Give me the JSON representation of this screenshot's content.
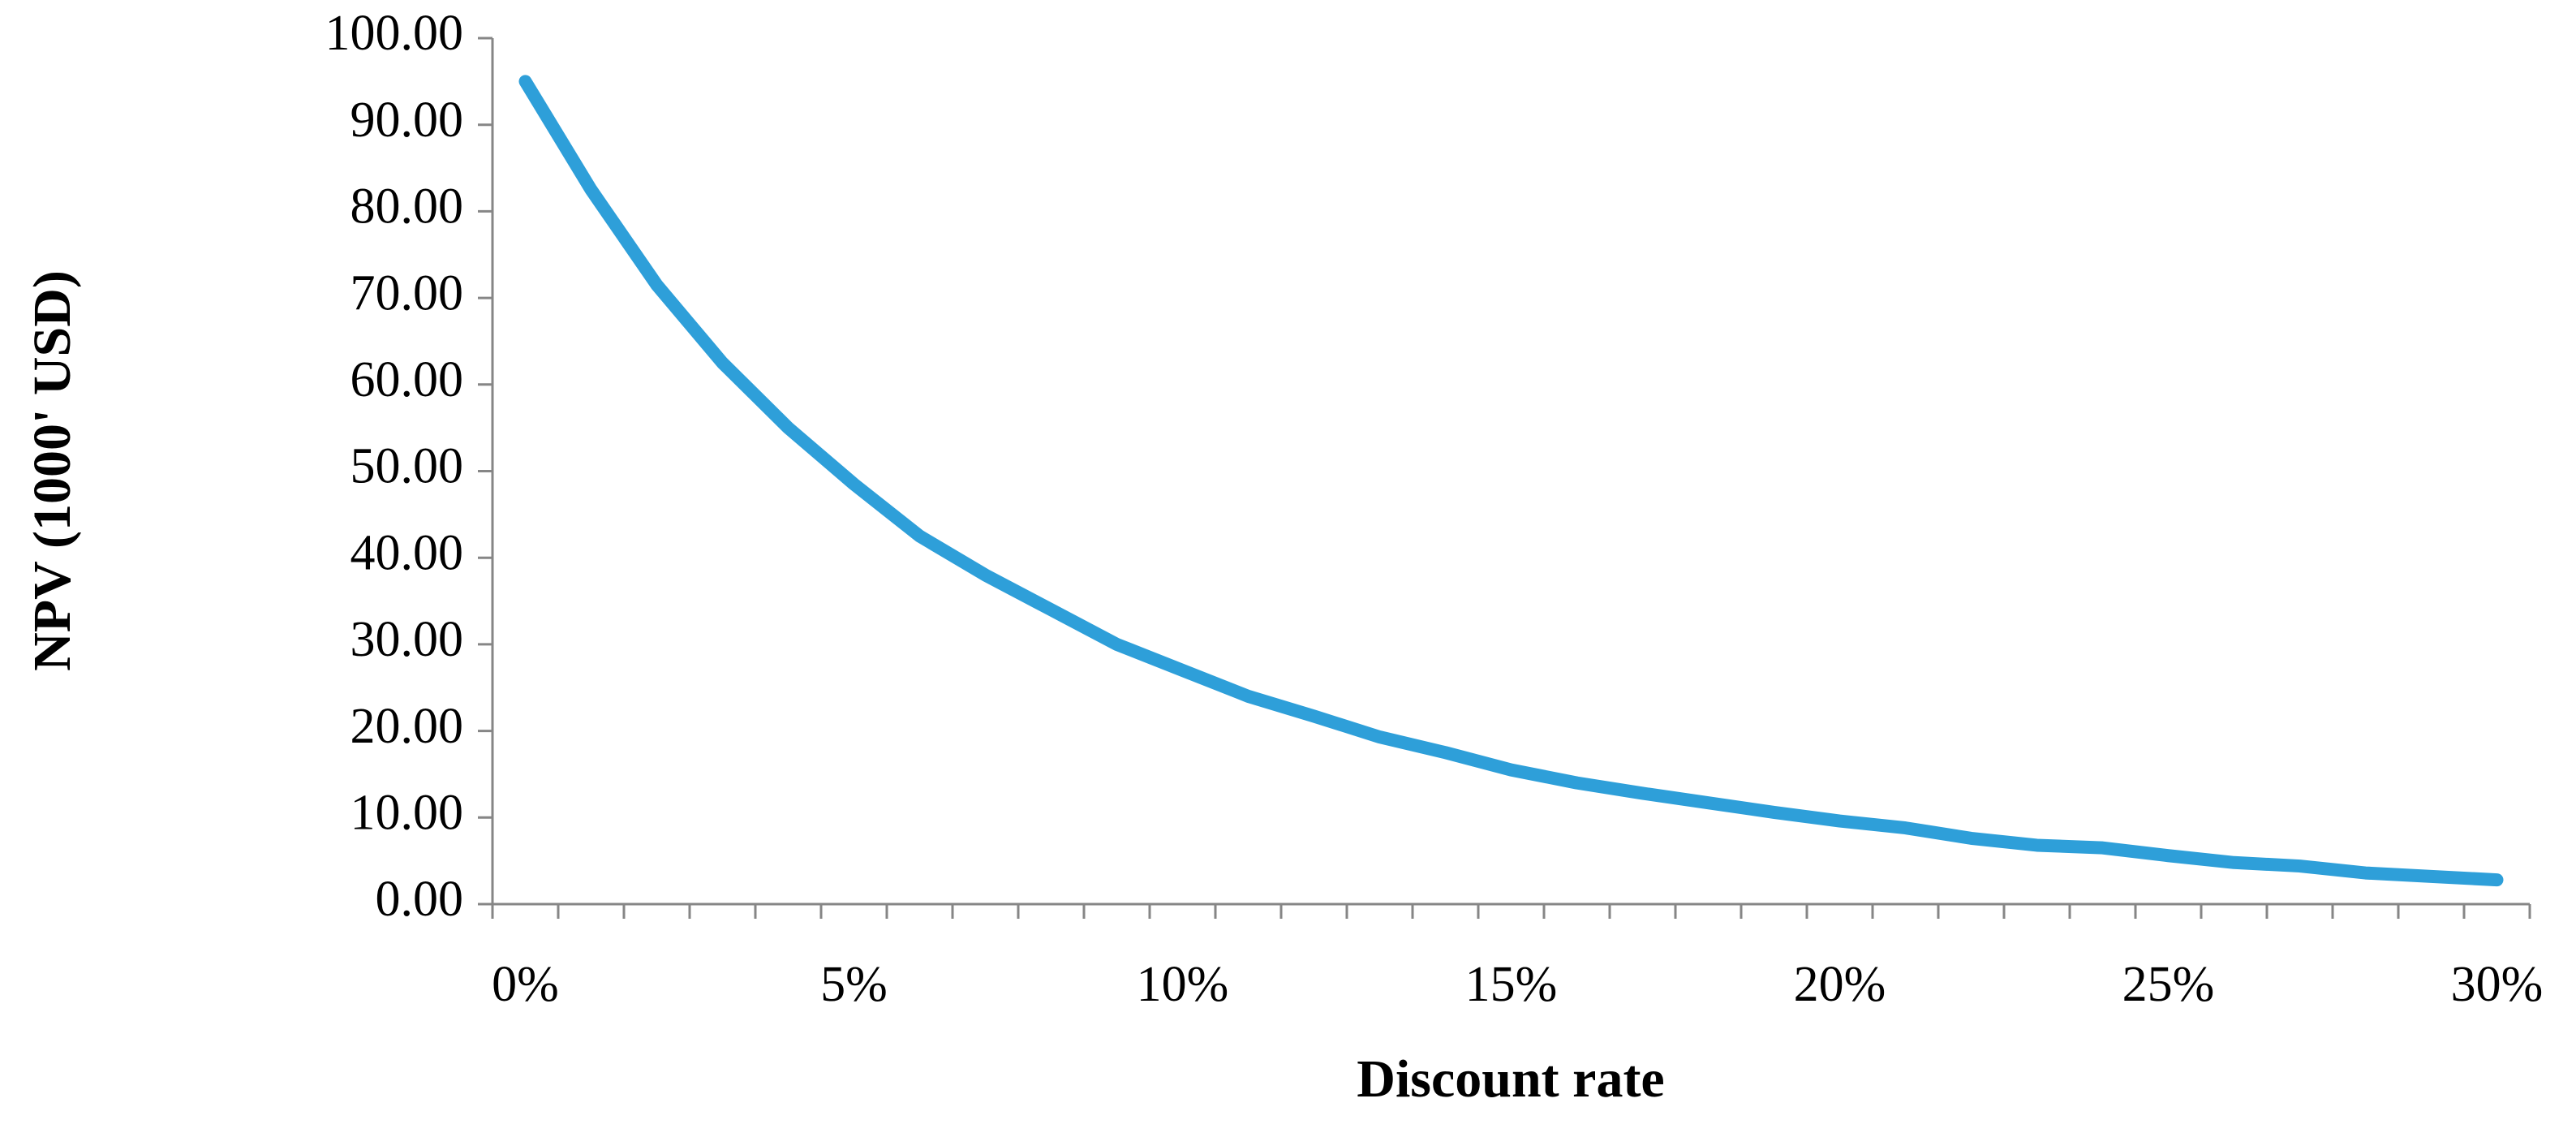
{
  "chart_data": {
    "type": "line",
    "x_label": "Discount rate",
    "y_label": "NPV  (1000' USD)",
    "categories": [
      "0%",
      null,
      null,
      null,
      null,
      "5%",
      null,
      null,
      null,
      null,
      "10%",
      null,
      null,
      null,
      null,
      "15%",
      null,
      null,
      null,
      null,
      "20%",
      null,
      null,
      null,
      null,
      "25%",
      null,
      null,
      null,
      null,
      "30%"
    ],
    "series": [
      {
        "name": "NPV",
        "color": "#2e9fd9",
        "values": [
          95,
          82.5,
          71.5,
          62.5,
          55,
          48.5,
          42.5,
          38,
          34,
          30,
          27,
          24,
          21.7,
          19.3,
          17.5,
          15.5,
          14,
          12.8,
          11.7,
          10.6,
          9.6,
          8.8,
          7.6,
          6.8,
          6.5,
          5.6,
          4.8,
          4.4,
          3.6,
          3.2,
          2.8
        ]
      }
    ],
    "ylim": [
      0,
      100
    ],
    "yticks": [
      {
        "value": 0,
        "label": "0.00"
      },
      {
        "value": 10,
        "label": "10.00"
      },
      {
        "value": 20,
        "label": "20.00"
      },
      {
        "value": 30,
        "label": "30.00"
      },
      {
        "value": 40,
        "label": "40.00"
      },
      {
        "value": 50,
        "label": "50.00"
      },
      {
        "value": 60,
        "label": "60.00"
      },
      {
        "value": 70,
        "label": "70.00"
      },
      {
        "value": 80,
        "label": "80.00"
      },
      {
        "value": 90,
        "label": "90.00"
      },
      {
        "value": 100,
        "label": "100.00"
      }
    ],
    "grid": false
  }
}
